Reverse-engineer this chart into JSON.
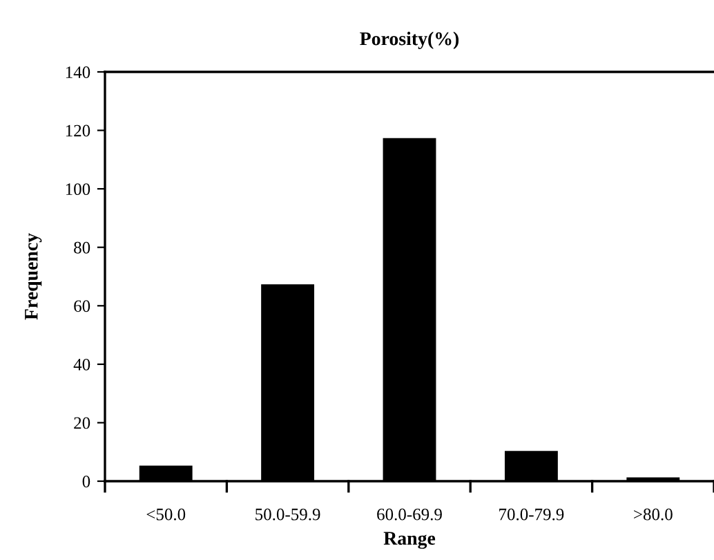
{
  "chart_data": {
    "type": "bar",
    "title": "Porosity(%)",
    "xlabel": "Range",
    "ylabel": "Frequency",
    "categories": [
      "<50.0",
      "50.0-59.9",
      "60.0-69.9",
      "70.0-79.9",
      ">80.0"
    ],
    "values": [
      5,
      67,
      117,
      10,
      1
    ],
    "color": "#000000",
    "ylim": [
      0,
      140
    ],
    "yticks": [
      0,
      20,
      40,
      60,
      80,
      100,
      120,
      140
    ],
    "grid": false,
    "legend": false
  }
}
